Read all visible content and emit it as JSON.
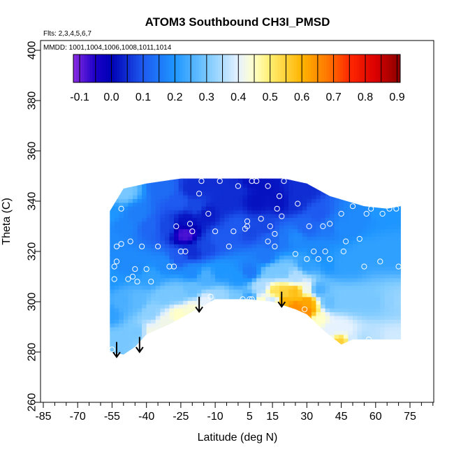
{
  "chart_data": {
    "type": "heatmap",
    "title": "ATOM3 Southbound CH3I_PMSD",
    "subtitle_flights": "Flts: 2,3,4,5,6,7",
    "subtitle_dates": "MMDD: 1001,1004,1006,1008,1011,1014",
    "xlabel": "Latitude (deg N)",
    "ylabel": "Theta (C)",
    "xlim": [
      -85,
      85
    ],
    "ylim": [
      260,
      400
    ],
    "x_ticks": [
      "-85",
      "-70",
      "-55",
      "-40",
      "-25",
      "-10",
      "5",
      "15",
      "30",
      "45",
      "60",
      "75"
    ],
    "x_tick_values": [
      -85,
      -70,
      -55,
      -40,
      -25,
      -10,
      5,
      15,
      30,
      45,
      60,
      75
    ],
    "y_ticks": [
      "260",
      "280",
      "300",
      "320",
      "340",
      "360",
      "380",
      "400"
    ],
    "y_tick_values": [
      260,
      280,
      300,
      320,
      340,
      360,
      380,
      400
    ],
    "colorbar": {
      "ticks": [
        "-0.1",
        "0.0",
        "0.1",
        "0.2",
        "0.3",
        "0.4",
        "0.5",
        "0.6",
        "0.7",
        "0.8",
        "0.9"
      ],
      "tick_values": [
        -0.1,
        0.0,
        0.1,
        0.2,
        0.3,
        0.4,
        0.5,
        0.6,
        0.7,
        0.8,
        0.9
      ],
      "range": [
        -0.12,
        0.91
      ],
      "stops": [
        {
          "v": -0.12,
          "c": "#8a2be2"
        },
        {
          "v": -0.05,
          "c": "#1a00c8"
        },
        {
          "v": 0.0,
          "c": "#0000b4"
        },
        {
          "v": 0.1,
          "c": "#1e5af0"
        },
        {
          "v": 0.2,
          "c": "#1e96ff"
        },
        {
          "v": 0.3,
          "c": "#78c8ff"
        },
        {
          "v": 0.4,
          "c": "#e6f2ff"
        },
        {
          "v": 0.45,
          "c": "#ffffc8"
        },
        {
          "v": 0.5,
          "c": "#ffee70"
        },
        {
          "v": 0.6,
          "c": "#ffb400"
        },
        {
          "v": 0.68,
          "c": "#ff7800"
        },
        {
          "v": 0.75,
          "c": "#ff2800"
        },
        {
          "v": 0.83,
          "c": "#dc0000"
        },
        {
          "v": 0.91,
          "c": "#8b0000"
        }
      ]
    },
    "field": {
      "lower_boundary": [
        [
          -56,
          280
        ],
        [
          -50,
          279
        ],
        [
          -45,
          282
        ],
        [
          -40,
          287
        ],
        [
          -30,
          291
        ],
        [
          -20,
          296
        ],
        [
          -10,
          301
        ],
        [
          5,
          301
        ],
        [
          15,
          300
        ],
        [
          25,
          297
        ],
        [
          30,
          295
        ],
        [
          38,
          288
        ],
        [
          45,
          283
        ],
        [
          50,
          285
        ],
        [
          55,
          285
        ],
        [
          71,
          285
        ]
      ],
      "upper_boundary": [
        [
          -56,
          336
        ],
        [
          -50,
          345
        ],
        [
          -40,
          347
        ],
        [
          -25,
          349
        ],
        [
          -10,
          349
        ],
        [
          5,
          349
        ],
        [
          20,
          349
        ],
        [
          30,
          347
        ],
        [
          40,
          342
        ],
        [
          55,
          338
        ],
        [
          65,
          337
        ],
        [
          71,
          338
        ]
      ],
      "nodes": [
        [
          -56,
          280,
          0.3
        ],
        [
          -56,
          285,
          0.3
        ],
        [
          -56,
          295,
          0.22
        ],
        [
          -56,
          310,
          0.2
        ],
        [
          -56,
          325,
          0.18
        ],
        [
          -56,
          335,
          0.2
        ],
        [
          -50,
          285,
          0.3
        ],
        [
          -50,
          300,
          0.25
        ],
        [
          -50,
          315,
          0.18
        ],
        [
          -50,
          330,
          0.17
        ],
        [
          -50,
          344,
          0.3
        ],
        [
          -44,
          288,
          0.3
        ],
        [
          -44,
          300,
          0.27
        ],
        [
          -44,
          315,
          0.18
        ],
        [
          -44,
          335,
          0.16
        ],
        [
          -38,
          288,
          0.42
        ],
        [
          -38,
          296,
          0.32
        ],
        [
          -38,
          310,
          0.22
        ],
        [
          -38,
          330,
          0.12
        ],
        [
          -32,
          292,
          0.42
        ],
        [
          -32,
          302,
          0.3
        ],
        [
          -32,
          315,
          0.18
        ],
        [
          -32,
          330,
          0.08
        ],
        [
          -32,
          345,
          0.13
        ],
        [
          -26,
          295,
          0.45
        ],
        [
          -26,
          303,
          0.3
        ],
        [
          -26,
          318,
          0.1
        ],
        [
          -26,
          340,
          0.1
        ],
        [
          -23,
          327,
          -0.08
        ],
        [
          -22,
          332,
          0.02
        ],
        [
          -20,
          320,
          0.05
        ],
        [
          -18,
          338,
          0.08
        ],
        [
          -20,
          297,
          0.44
        ],
        [
          -20,
          305,
          0.28
        ],
        [
          -20,
          312,
          0.18
        ],
        [
          -20,
          345,
          0.05
        ],
        [
          -14,
          300,
          0.4
        ],
        [
          -14,
          310,
          0.25
        ],
        [
          -14,
          322,
          0.08
        ],
        [
          -14,
          335,
          0.03
        ],
        [
          -12,
          348,
          0.05
        ],
        [
          -8,
          302,
          0.33
        ],
        [
          -8,
          312,
          0.2
        ],
        [
          -8,
          325,
          0.1
        ],
        [
          -5,
          340,
          0.05
        ],
        [
          0,
          301,
          0.3
        ],
        [
          0,
          310,
          0.2
        ],
        [
          0,
          330,
          0.1
        ],
        [
          0,
          345,
          0.05
        ],
        [
          5,
          301,
          0.22
        ],
        [
          5,
          312,
          0.15
        ],
        [
          5,
          328,
          0.08
        ],
        [
          8,
          340,
          0.02
        ],
        [
          5,
          348,
          0.02
        ],
        [
          10,
          300,
          0.45
        ],
        [
          10,
          306,
          0.35
        ],
        [
          12,
          318,
          0.15
        ],
        [
          12,
          330,
          0.08
        ],
        [
          12,
          345,
          0.02
        ],
        [
          15,
          301,
          0.38
        ],
        [
          16,
          304,
          0.52
        ],
        [
          15,
          312,
          0.3
        ],
        [
          15,
          325,
          0.12
        ],
        [
          18,
          340,
          0.02
        ],
        [
          20,
          300,
          0.6
        ],
        [
          20,
          304,
          0.55
        ],
        [
          20,
          312,
          0.3
        ],
        [
          20,
          325,
          0.15
        ],
        [
          25,
          298,
          0.65
        ],
        [
          25,
          304,
          0.58
        ],
        [
          25,
          310,
          0.35
        ],
        [
          25,
          325,
          0.18
        ],
        [
          25,
          340,
          0.05
        ],
        [
          30,
          296,
          0.65
        ],
        [
          30,
          300,
          0.62
        ],
        [
          30,
          305,
          0.42
        ],
        [
          30,
          315,
          0.22
        ],
        [
          30,
          330,
          0.12
        ],
        [
          30,
          345,
          0.05
        ],
        [
          35,
          293,
          0.45
        ],
        [
          35,
          305,
          0.25
        ],
        [
          35,
          320,
          0.18
        ],
        [
          35,
          335,
          0.1
        ],
        [
          40,
          289,
          0.4
        ],
        [
          40,
          300,
          0.28
        ],
        [
          40,
          315,
          0.2
        ],
        [
          40,
          330,
          0.15
        ],
        [
          45,
          284,
          0.55
        ],
        [
          45,
          290,
          0.4
        ],
        [
          45,
          300,
          0.3
        ],
        [
          45,
          315,
          0.22
        ],
        [
          45,
          330,
          0.18
        ],
        [
          50,
          285,
          0.38
        ],
        [
          50,
          300,
          0.3
        ],
        [
          50,
          315,
          0.22
        ],
        [
          50,
          330,
          0.18
        ],
        [
          55,
          285,
          0.35
        ],
        [
          55,
          300,
          0.3
        ],
        [
          55,
          320,
          0.22
        ],
        [
          55,
          335,
          0.18
        ],
        [
          60,
          285,
          0.36
        ],
        [
          60,
          300,
          0.3
        ],
        [
          60,
          320,
          0.22
        ],
        [
          60,
          336,
          0.2
        ],
        [
          66,
          285,
          0.38
        ],
        [
          66,
          300,
          0.32
        ],
        [
          66,
          320,
          0.22
        ],
        [
          66,
          336,
          0.2
        ],
        [
          71,
          285,
          0.38
        ],
        [
          71,
          300,
          0.33
        ],
        [
          71,
          320,
          0.22
        ],
        [
          71,
          338,
          0.2
        ]
      ]
    },
    "samples": [
      [
        -55,
        281
      ],
      [
        -54,
        309
      ],
      [
        -54,
        314
      ],
      [
        -53,
        316
      ],
      [
        -53,
        322
      ],
      [
        -51,
        323
      ],
      [
        -51,
        337
      ],
      [
        -48,
        309
      ],
      [
        -47,
        324
      ],
      [
        -46,
        310
      ],
      [
        -45,
        313
      ],
      [
        -44,
        308
      ],
      [
        -42,
        322
      ],
      [
        -40,
        313
      ],
      [
        -38,
        308
      ],
      [
        -35,
        322
      ],
      [
        -30,
        314
      ],
      [
        -28,
        314
      ],
      [
        -27,
        330
      ],
      [
        -25,
        320
      ],
      [
        -23,
        320
      ],
      [
        -21,
        331
      ],
      [
        -20,
        328
      ],
      [
        -17,
        343
      ],
      [
        -16,
        348
      ],
      [
        -13,
        335
      ],
      [
        -12,
        302
      ],
      [
        -10,
        328
      ],
      [
        -8,
        348
      ],
      [
        -4,
        322
      ],
      [
        -2,
        328
      ],
      [
        0,
        346
      ],
      [
        2,
        301
      ],
      [
        3,
        329
      ],
      [
        4,
        330
      ],
      [
        4,
        332
      ],
      [
        5,
        301
      ],
      [
        6,
        301
      ],
      [
        6,
        348
      ],
      [
        8,
        348
      ],
      [
        10,
        333
      ],
      [
        13,
        346
      ],
      [
        13,
        324
      ],
      [
        14,
        330
      ],
      [
        16,
        322
      ],
      [
        16,
        327
      ],
      [
        17,
        337
      ],
      [
        18,
        342
      ],
      [
        19,
        334
      ],
      [
        20,
        348
      ],
      [
        25,
        319
      ],
      [
        26,
        339
      ],
      [
        29,
        297
      ],
      [
        30,
        317
      ],
      [
        31,
        330
      ],
      [
        33,
        320
      ],
      [
        35,
        317
      ],
      [
        37,
        330
      ],
      [
        38,
        320
      ],
      [
        40,
        317
      ],
      [
        40,
        331
      ],
      [
        45,
        335
      ],
      [
        46,
        320
      ],
      [
        47,
        324
      ],
      [
        50,
        338
      ],
      [
        53,
        325
      ],
      [
        55,
        314
      ],
      [
        56,
        335
      ],
      [
        57,
        285
      ],
      [
        58,
        337
      ],
      [
        62,
        316
      ],
      [
        63,
        335
      ],
      [
        66,
        337
      ],
      [
        69,
        337
      ],
      [
        70,
        314
      ]
    ],
    "arrows": [
      [
        -53,
        284
      ],
      [
        -43,
        286
      ],
      [
        -17,
        302
      ],
      [
        19,
        304
      ]
    ]
  }
}
